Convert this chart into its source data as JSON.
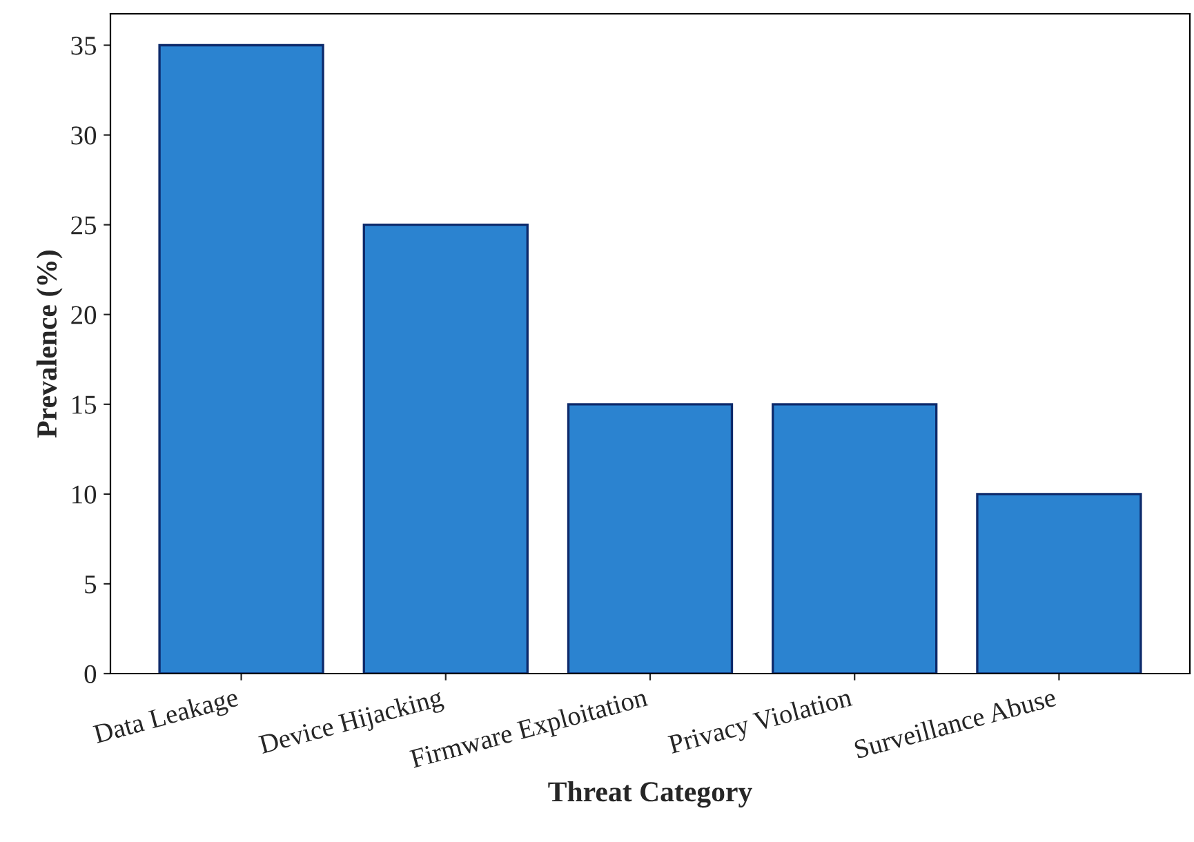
{
  "chart_data": {
    "type": "bar",
    "xlabel": "Threat Category",
    "ylabel": "Prevalence (%)",
    "categories": [
      "Data Leakage",
      "Device Hijacking",
      "Firmware Exploitation",
      "Privacy Violation",
      "Surveillance Abuse"
    ],
    "values": [
      35,
      25,
      15,
      15,
      10
    ],
    "color": "#2b83d0",
    "ylim": [
      0,
      36.75
    ],
    "yticks": [
      0,
      5,
      10,
      15,
      20,
      25,
      30,
      35
    ],
    "grid": false
  }
}
